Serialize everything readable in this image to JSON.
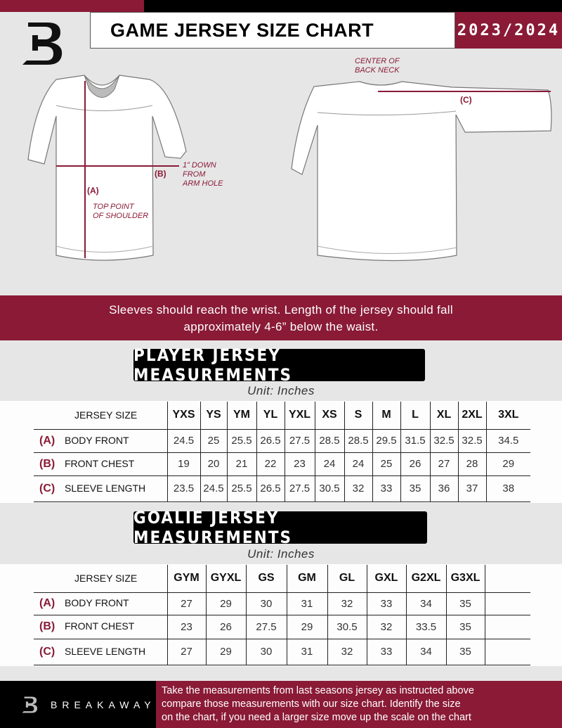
{
  "header": {
    "title": "GAME JERSEY SIZE CHART",
    "season": "2023/2024",
    "logo_letter": "B"
  },
  "diagram": {
    "label_a": "(A)",
    "label_b": "(B)",
    "label_c": "(C)",
    "note_shoulder": [
      "TOP POINT",
      "OF SHOULDER"
    ],
    "note_armhole": [
      "1” DOWN",
      "FROM",
      "ARM HOLE"
    ],
    "note_neck": [
      "CENTER OF",
      "BACK NECK"
    ]
  },
  "banner": {
    "lines": [
      "Sleeves should reach the wrist. Length of the jersey should fall",
      "approximately 4-6” below the waist."
    ]
  },
  "player": {
    "title": "PLAYER JERSEY MEASUREMENTS",
    "unit": "Unit: Inches",
    "header_label": "JERSEY SIZE",
    "sizes": [
      "YXS",
      "YS",
      "YM",
      "YL",
      "YXL",
      "XS",
      "S",
      "M",
      "L",
      "XL",
      "2XL",
      "3XL"
    ],
    "rows": [
      {
        "letter": "(A)",
        "name": "BODY FRONT",
        "values": [
          "24.5",
          "25",
          "25.5",
          "26.5",
          "27.5",
          "28.5",
          "28.5",
          "29.5",
          "31.5",
          "32.5",
          "32.5",
          "34.5"
        ]
      },
      {
        "letter": "(B)",
        "name": "FRONT CHEST",
        "values": [
          "19",
          "20",
          "21",
          "22",
          "23",
          "24",
          "24",
          "25",
          "26",
          "27",
          "28",
          "29"
        ]
      },
      {
        "letter": "(C)",
        "name": "SLEEVE LENGTH",
        "values": [
          "23.5",
          "24.5",
          "25.5",
          "26.5",
          "27.5",
          "30.5",
          "32",
          "33",
          "35",
          "36",
          "37",
          "38"
        ]
      }
    ]
  },
  "goalie": {
    "title": "GOALIE JERSEY MEASUREMENTS",
    "unit": "Unit: Inches",
    "header_label": "JERSEY SIZE",
    "sizes": [
      "GYM",
      "GYXL",
      "GS",
      "GM",
      "GL",
      "GXL",
      "G2XL",
      "G3XL",
      ""
    ],
    "rows": [
      {
        "letter": "(A)",
        "name": "BODY FRONT",
        "values": [
          "27",
          "29",
          "30",
          "31",
          "32",
          "33",
          "34",
          "35",
          ""
        ]
      },
      {
        "letter": "(B)",
        "name": "FRONT CHEST",
        "values": [
          "23",
          "26",
          "27.5",
          "29",
          "30.5",
          "32",
          "33.5",
          "35",
          ""
        ]
      },
      {
        "letter": "(C)",
        "name": "SLEEVE LENGTH",
        "values": [
          "27",
          "29",
          "30",
          "31",
          "32",
          "33",
          "34",
          "35",
          ""
        ]
      }
    ]
  },
  "footer": {
    "brand": "BREAKAWAY",
    "text": [
      "Take the measurements from last seasons jersey as instructed above",
      "compare those measurements  with our size chart. Identify the size",
      "on the chart, if you need a larger size move up the scale on the chart"
    ]
  },
  "colors": {
    "brand": "#8a1a36",
    "black": "#000000",
    "background": "#e6e6e7"
  }
}
